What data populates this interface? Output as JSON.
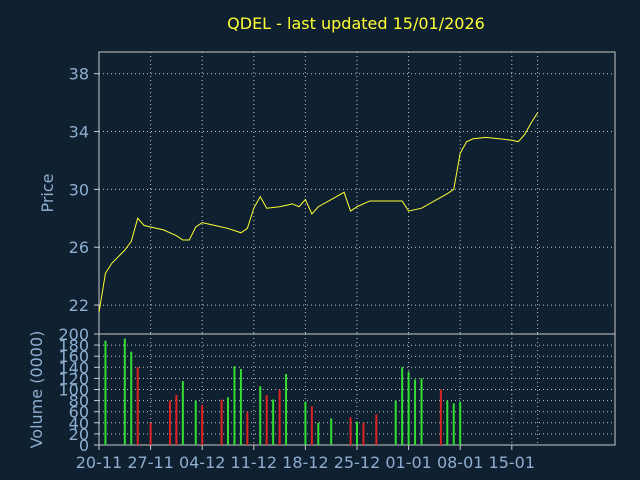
{
  "title": "QDEL - last updated 15/01/2026",
  "colors": {
    "background": "#0f2031",
    "price_line": "#ffff33",
    "volume_up": "#33dd33",
    "volume_down": "#dd2222",
    "axis_text": "#8eaed0",
    "grid": "#c8c8c8",
    "frame": "#c8c8c8"
  },
  "chart_data": [
    {
      "type": "line",
      "name": "price",
      "ylabel": "Price",
      "ylim": [
        20,
        39.5
      ],
      "yticks": [
        22,
        26,
        30,
        34,
        38
      ],
      "xlim": [
        0,
        40
      ],
      "grid": true,
      "points": [
        [
          0.0,
          21.5
        ],
        [
          0.5,
          24.2
        ],
        [
          1.0,
          24.9
        ],
        [
          2.0,
          25.8
        ],
        [
          2.5,
          26.4
        ],
        [
          3.0,
          28.0
        ],
        [
          3.5,
          27.5
        ],
        [
          4.0,
          27.4
        ],
        [
          5.0,
          27.2
        ],
        [
          6.0,
          26.8
        ],
        [
          6.5,
          26.5
        ],
        [
          7.0,
          26.5
        ],
        [
          7.5,
          27.4
        ],
        [
          8.0,
          27.7
        ],
        [
          9.0,
          27.5
        ],
        [
          10.0,
          27.3
        ],
        [
          11.0,
          27.0
        ],
        [
          11.5,
          27.3
        ],
        [
          12.0,
          28.7
        ],
        [
          12.5,
          29.5
        ],
        [
          13.0,
          28.7
        ],
        [
          14.0,
          28.8
        ],
        [
          15.0,
          29.0
        ],
        [
          15.5,
          28.8
        ],
        [
          16.0,
          29.3
        ],
        [
          16.5,
          28.3
        ],
        [
          17.0,
          28.8
        ],
        [
          18.0,
          29.3
        ],
        [
          19.0,
          29.8
        ],
        [
          19.5,
          28.5
        ],
        [
          20.0,
          28.8
        ],
        [
          21.0,
          29.2
        ],
        [
          22.0,
          29.2
        ],
        [
          23.0,
          29.2
        ],
        [
          23.5,
          29.2
        ],
        [
          24.0,
          28.5
        ],
        [
          25.0,
          28.7
        ],
        [
          26.0,
          29.2
        ],
        [
          27.0,
          29.7
        ],
        [
          27.5,
          30.0
        ],
        [
          28.0,
          32.5
        ],
        [
          28.5,
          33.3
        ],
        [
          29.0,
          33.5
        ],
        [
          30.0,
          33.6
        ],
        [
          31.0,
          33.5
        ],
        [
          32.0,
          33.4
        ],
        [
          32.5,
          33.3
        ],
        [
          33.0,
          33.8
        ],
        [
          33.5,
          34.6
        ],
        [
          34.0,
          35.3
        ]
      ]
    },
    {
      "type": "bar",
      "name": "volume",
      "ylabel": "Volume (0000)",
      "ylim": [
        0,
        200
      ],
      "yticks": [
        0,
        20,
        40,
        60,
        80,
        100,
        120,
        140,
        160,
        180,
        200
      ],
      "xlim": [
        0,
        40
      ],
      "grid": true,
      "x_categories": [
        "20-11",
        "27-11",
        "04-12",
        "11-12",
        "18-12",
        "25-12",
        "01-01",
        "08-01",
        "15-01"
      ],
      "bars": [
        {
          "x": 0.5,
          "value": 188,
          "dir": "up"
        },
        {
          "x": 2.0,
          "value": 192,
          "dir": "up"
        },
        {
          "x": 2.5,
          "value": 168,
          "dir": "up"
        },
        {
          "x": 3.0,
          "value": 140,
          "dir": "down"
        },
        {
          "x": 4.0,
          "value": 40,
          "dir": "down"
        },
        {
          "x": 5.5,
          "value": 80,
          "dir": "down"
        },
        {
          "x": 6.0,
          "value": 90,
          "dir": "down"
        },
        {
          "x": 6.5,
          "value": 115,
          "dir": "up"
        },
        {
          "x": 7.5,
          "value": 80,
          "dir": "up"
        },
        {
          "x": 8.0,
          "value": 72,
          "dir": "down"
        },
        {
          "x": 9.5,
          "value": 82,
          "dir": "down"
        },
        {
          "x": 10.0,
          "value": 86,
          "dir": "up"
        },
        {
          "x": 10.5,
          "value": 142,
          "dir": "up"
        },
        {
          "x": 11.0,
          "value": 137,
          "dir": "up"
        },
        {
          "x": 11.5,
          "value": 60,
          "dir": "down"
        },
        {
          "x": 12.5,
          "value": 106,
          "dir": "up"
        },
        {
          "x": 13.0,
          "value": 90,
          "dir": "down"
        },
        {
          "x": 13.5,
          "value": 82,
          "dir": "up"
        },
        {
          "x": 14.0,
          "value": 100,
          "dir": "down"
        },
        {
          "x": 14.5,
          "value": 128,
          "dir": "up"
        },
        {
          "x": 16.0,
          "value": 78,
          "dir": "up"
        },
        {
          "x": 16.5,
          "value": 70,
          "dir": "down"
        },
        {
          "x": 17.0,
          "value": 40,
          "dir": "up"
        },
        {
          "x": 18.0,
          "value": 48,
          "dir": "up"
        },
        {
          "x": 19.5,
          "value": 50,
          "dir": "down"
        },
        {
          "x": 20.0,
          "value": 42,
          "dir": "up"
        },
        {
          "x": 20.5,
          "value": 40,
          "dir": "down"
        },
        {
          "x": 21.5,
          "value": 55,
          "dir": "down"
        },
        {
          "x": 23.0,
          "value": 80,
          "dir": "up"
        },
        {
          "x": 23.5,
          "value": 140,
          "dir": "up"
        },
        {
          "x": 24.0,
          "value": 132,
          "dir": "up"
        },
        {
          "x": 24.5,
          "value": 118,
          "dir": "up"
        },
        {
          "x": 25.0,
          "value": 120,
          "dir": "up"
        },
        {
          "x": 26.5,
          "value": 100,
          "dir": "down"
        },
        {
          "x": 27.0,
          "value": 80,
          "dir": "up"
        },
        {
          "x": 27.5,
          "value": 75,
          "dir": "up"
        },
        {
          "x": 28.0,
          "value": 78,
          "dir": "up"
        }
      ]
    }
  ]
}
